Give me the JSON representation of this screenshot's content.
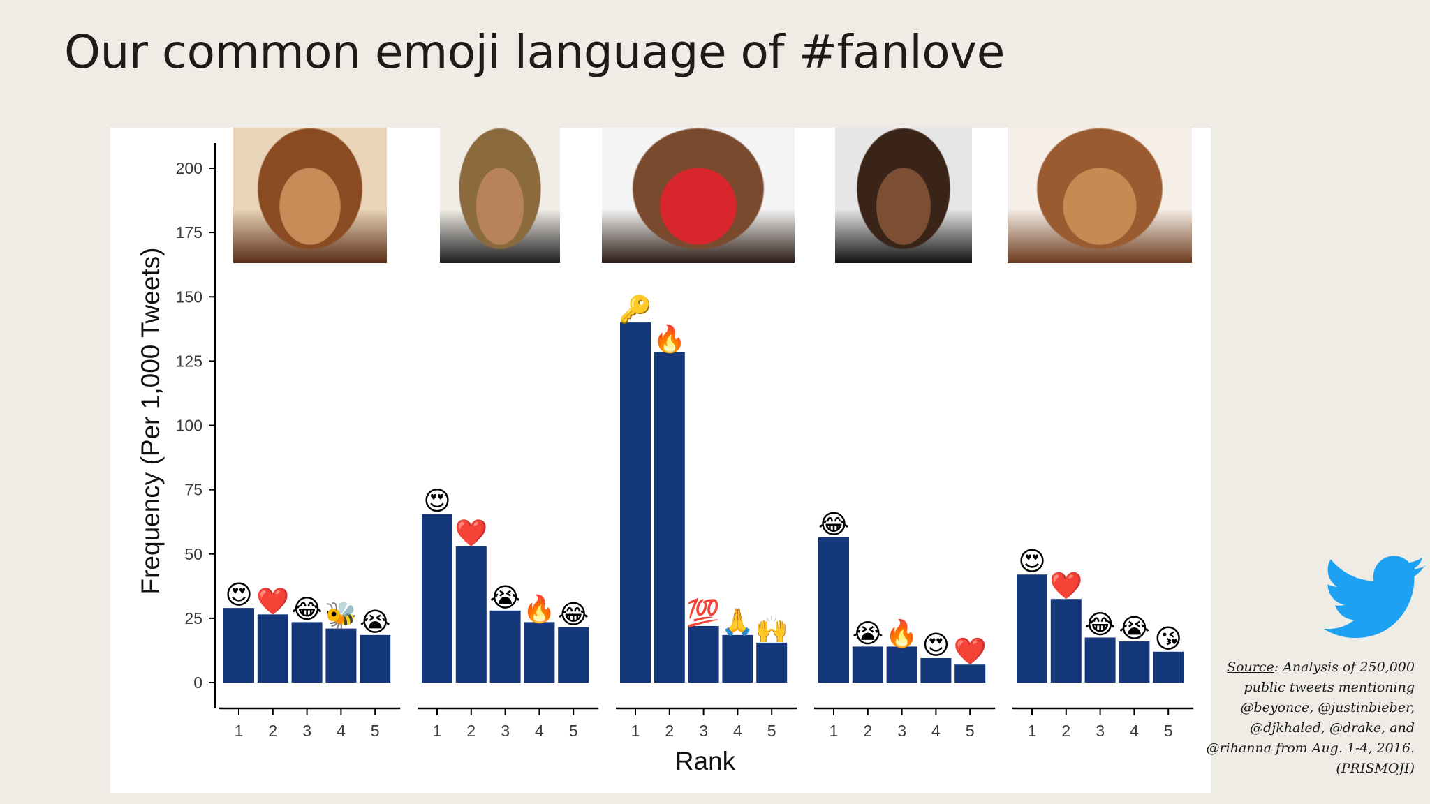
{
  "slide": {
    "title": "Our common emoji language of #fanlove"
  },
  "source": {
    "label": "Source",
    "text": ": Analysis of 250,000 public tweets mentioning @beyonce, @justinbieber, @djkhaled, @drake, and @rihanna from Aug. 1-4, 2016. (PRISMOJI)"
  },
  "colors": {
    "bar": "#15387a",
    "background": "#efece6",
    "panel": "#ffffff",
    "twitter": "#1da1f2"
  },
  "chart_data": {
    "type": "bar",
    "ylabel": "Frequency (Per 1,000 Tweets)",
    "xlabel": "Rank",
    "ylim": [
      0,
      200
    ],
    "yticks": [
      0,
      25,
      50,
      75,
      100,
      125,
      150,
      175,
      200
    ],
    "categories": [
      "1",
      "2",
      "3",
      "4",
      "5"
    ],
    "grid": false,
    "facets": [
      {
        "photo": "beyonce-photo",
        "values": [
          29,
          26.5,
          23.5,
          21,
          18.5
        ],
        "emojis": [
          "😍",
          "❤️",
          "😂",
          "🐝",
          "😭"
        ],
        "photo_colors": [
          "#e9d4b8",
          "#c98c58",
          "#8a4a22",
          "#5a2e16"
        ]
      },
      {
        "photo": "justinbieber-photo",
        "values": [
          65.5,
          53,
          28,
          23.5,
          21.5
        ],
        "emojis": [
          "😍",
          "❤️",
          "😭",
          "🔥",
          "😂"
        ],
        "photo_colors": [
          "#f1ede6",
          "#b9835a",
          "#8b6a3e",
          "#1d1d1f"
        ]
      },
      {
        "photo": "djkhaled-photo",
        "values": [
          140,
          128.5,
          22,
          18.5,
          15.5
        ],
        "emojis": [
          "🔑",
          "🔥",
          "💯",
          "🙏",
          "🙌"
        ],
        "photo_colors": [
          "#f4f4f4",
          "#d8262c",
          "#7a4a2e",
          "#2a1a12"
        ]
      },
      {
        "photo": "drake-photo",
        "values": [
          56.5,
          14,
          14,
          9.5,
          7
        ],
        "emojis": [
          "😂",
          "😭",
          "🔥",
          "😍",
          "❤️"
        ],
        "photo_colors": [
          "#e6e6e6",
          "#7c4f34",
          "#3a2418",
          "#111111"
        ]
      },
      {
        "photo": "rihanna-photo",
        "values": [
          42,
          32.5,
          17.5,
          16,
          12
        ],
        "emojis": [
          "😍",
          "❤️",
          "😂",
          "😭",
          "😘"
        ],
        "photo_colors": [
          "#f6efe8",
          "#c78a52",
          "#9a5b30",
          "#6b3a1c"
        ]
      }
    ]
  }
}
